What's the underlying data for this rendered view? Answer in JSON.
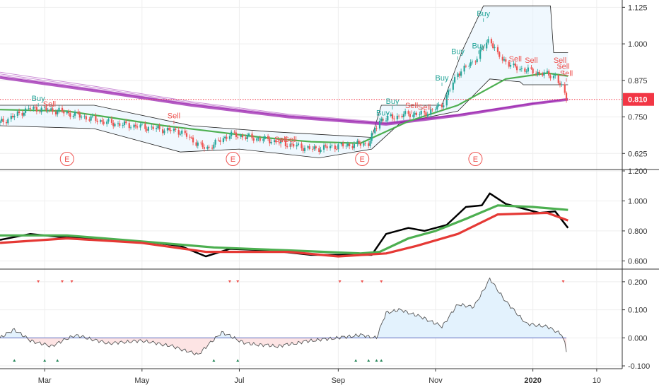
{
  "colors": {
    "up": "#26a69a",
    "down": "#ef5350",
    "buy": "#26a69a",
    "sell": "#ef5350",
    "ma_purple": "#9c27b0",
    "ma_green": "#4caf50",
    "ma_red": "#e53935",
    "channel": "#222222",
    "channel_fill": "#e3f2fd",
    "osc_pos_fill": "#e3f2fd",
    "osc_neg_fill": "#fde4e4",
    "zero_line": "#5c6bc0",
    "grid": "#eeeeee",
    "axis_text": "#333333",
    "price_tag": "#f23645"
  },
  "chart_data": [
    {
      "type": "candlestick",
      "panel": "price",
      "current_price_label": "0.810",
      "current_price": 0.81,
      "ylim": [
        0.575,
        1.15
      ],
      "y_ticks": [
        "1.125",
        "1.000",
        "0.875",
        "0.750",
        "0.625"
      ],
      "y_tick_values": [
        1.125,
        1.0,
        0.875,
        0.75,
        0.625
      ],
      "x_start": "2019-02-01",
      "x_end": "2020-02-26",
      "last_bar_date": "2020-01-23",
      "earnings_marker_label": "E",
      "earnings_dates": [
        "2019-03-15",
        "2019-06-27",
        "2019-09-16",
        "2019-11-26"
      ],
      "signals": [
        {
          "label": "Buy",
          "date": "2019-02-25",
          "value": 0.8
        },
        {
          "label": "Sell",
          "date": "2019-03-04",
          "value": 0.78
        },
        {
          "label": "Sell",
          "date": "2019-05-21",
          "value": 0.74
        },
        {
          "label": "Sell",
          "date": "2019-07-27",
          "value": 0.66
        },
        {
          "label": "Sell",
          "date": "2019-08-02",
          "value": 0.66
        },
        {
          "label": "Buy",
          "date": "2019-09-29",
          "value": 0.75
        },
        {
          "label": "Buy",
          "date": "2019-10-05",
          "value": 0.79
        },
        {
          "label": "Sell",
          "date": "2019-10-17",
          "value": 0.775
        },
        {
          "label": "Sell",
          "date": "2019-10-25",
          "value": 0.77
        },
        {
          "label": "Buy",
          "date": "2019-11-05",
          "value": 0.87
        },
        {
          "label": "Buy",
          "date": "2019-11-15",
          "value": 0.96
        },
        {
          "label": "Buy",
          "date": "2019-11-28",
          "value": 0.98
        },
        {
          "label": "Buy",
          "date": "2019-12-01",
          "value": 1.09
        },
        {
          "label": "Sell",
          "date": "2019-12-21",
          "value": 0.935
        },
        {
          "label": "Sell",
          "date": "2019-12-31",
          "value": 0.93
        },
        {
          "label": "Sell",
          "date": "2020-01-18",
          "value": 0.93
        },
        {
          "label": "Sell",
          "date": "2020-01-20",
          "value": 0.91
        },
        {
          "label": "Sell",
          "date": "2020-01-22",
          "value": 0.885
        }
      ],
      "close_path": [
        [
          "2019-02-01",
          0.73
        ],
        [
          "2019-02-20",
          0.78
        ],
        [
          "2019-03-10",
          0.77
        ],
        [
          "2019-04-10",
          0.73
        ],
        [
          "2019-05-10",
          0.71
        ],
        [
          "2019-05-25",
          0.7
        ],
        [
          "2019-06-10",
          0.64
        ],
        [
          "2019-06-25",
          0.69
        ],
        [
          "2019-07-20",
          0.67
        ],
        [
          "2019-08-15",
          0.64
        ],
        [
          "2019-09-01",
          0.65
        ],
        [
          "2019-09-20",
          0.66
        ],
        [
          "2019-09-27",
          0.74
        ],
        [
          "2019-10-15",
          0.76
        ],
        [
          "2019-10-25",
          0.76
        ],
        [
          "2019-11-05",
          0.79
        ],
        [
          "2019-11-15",
          0.9
        ],
        [
          "2019-11-25",
          0.94
        ],
        [
          "2019-12-05",
          1.02
        ],
        [
          "2019-12-10",
          0.96
        ],
        [
          "2019-12-20",
          0.92
        ],
        [
          "2020-01-05",
          0.9
        ],
        [
          "2020-01-15",
          0.89
        ],
        [
          "2020-01-23",
          0.81
        ]
      ],
      "ribbon_sma": [
        [
          "2019-02-01",
          0.885
        ],
        [
          "2019-04-01",
          0.84
        ],
        [
          "2019-06-01",
          0.79
        ],
        [
          "2019-08-01",
          0.75
        ],
        [
          "2019-10-01",
          0.725
        ],
        [
          "2019-11-15",
          0.755
        ],
        [
          "2020-01-01",
          0.795
        ],
        [
          "2020-01-23",
          0.81
        ]
      ],
      "ma_green": [
        [
          "2019-02-01",
          0.775
        ],
        [
          "2019-03-15",
          0.77
        ],
        [
          "2019-04-15",
          0.745
        ],
        [
          "2019-05-15",
          0.72
        ],
        [
          "2019-06-15",
          0.7
        ],
        [
          "2019-07-15",
          0.68
        ],
        [
          "2019-08-15",
          0.665
        ],
        [
          "2019-09-15",
          0.66
        ],
        [
          "2019-10-15",
          0.735
        ],
        [
          "2019-11-15",
          0.79
        ],
        [
          "2019-12-15",
          0.88
        ],
        [
          "2020-01-10",
          0.9
        ],
        [
          "2020-01-23",
          0.89
        ]
      ],
      "channel_upper": [
        [
          "2019-02-01",
          0.79
        ],
        [
          "2019-04-01",
          0.79
        ],
        [
          "2019-06-01",
          0.72
        ],
        [
          "2019-07-20",
          0.7
        ],
        [
          "2019-09-22",
          0.68
        ],
        [
          "2019-09-28",
          0.79
        ],
        [
          "2019-11-05",
          0.79
        ],
        [
          "2019-11-18",
          0.98
        ],
        [
          "2019-12-01",
          1.13
        ],
        [
          "2020-01-12",
          1.13
        ],
        [
          "2020-01-14",
          0.97
        ],
        [
          "2020-01-23",
          0.97
        ]
      ],
      "channel_lower": [
        [
          "2019-02-01",
          0.72
        ],
        [
          "2019-04-01",
          0.71
        ],
        [
          "2019-05-25",
          0.63
        ],
        [
          "2019-07-01",
          0.64
        ],
        [
          "2019-08-20",
          0.61
        ],
        [
          "2019-09-22",
          0.64
        ],
        [
          "2019-10-10",
          0.73
        ],
        [
          "2019-11-15",
          0.77
        ],
        [
          "2019-12-05",
          0.88
        ],
        [
          "2019-12-24",
          0.87
        ],
        [
          "2019-12-26",
          0.86
        ],
        [
          "2020-01-23",
          0.86
        ]
      ]
    },
    {
      "type": "line",
      "panel": "middle",
      "ylim": [
        0.55,
        1.2
      ],
      "y_ticks": [
        "1.200",
        "1.000",
        "0.800",
        "0.600"
      ],
      "y_tick_values": [
        1.2,
        1.0,
        0.8,
        0.6
      ],
      "series": [
        {
          "color": "#000000",
          "values": [
            [
              "2019-02-01",
              0.74
            ],
            [
              "2019-02-20",
              0.78
            ],
            [
              "2019-03-10",
              0.76
            ],
            [
              "2019-04-10",
              0.74
            ],
            [
              "2019-05-10",
              0.72
            ],
            [
              "2019-05-25",
              0.7
            ],
            [
              "2019-06-10",
              0.63
            ],
            [
              "2019-06-25",
              0.68
            ],
            [
              "2019-07-20",
              0.67
            ],
            [
              "2019-08-15",
              0.64
            ],
            [
              "2019-09-01",
              0.64
            ],
            [
              "2019-09-22",
              0.64
            ],
            [
              "2019-10-01",
              0.78
            ],
            [
              "2019-10-15",
              0.82
            ],
            [
              "2019-10-25",
              0.8
            ],
            [
              "2019-11-08",
              0.84
            ],
            [
              "2019-11-20",
              0.96
            ],
            [
              "2019-11-30",
              0.97
            ],
            [
              "2019-12-05",
              1.05
            ],
            [
              "2019-12-15",
              0.98
            ],
            [
              "2020-01-05",
              0.92
            ],
            [
              "2020-01-15",
              0.93
            ],
            [
              "2020-01-23",
              0.82
            ]
          ]
        },
        {
          "color": "#4caf50",
          "values": [
            [
              "2019-02-01",
              0.77
            ],
            [
              "2019-03-15",
              0.77
            ],
            [
              "2019-05-01",
              0.73
            ],
            [
              "2019-06-15",
              0.69
            ],
            [
              "2019-08-01",
              0.67
            ],
            [
              "2019-09-15",
              0.65
            ],
            [
              "2019-09-27",
              0.66
            ],
            [
              "2019-10-15",
              0.75
            ],
            [
              "2019-11-01",
              0.8
            ],
            [
              "2019-11-20",
              0.88
            ],
            [
              "2019-12-10",
              0.97
            ],
            [
              "2020-01-01",
              0.96
            ],
            [
              "2020-01-23",
              0.94
            ]
          ]
        },
        {
          "color": "#e53935",
          "values": [
            [
              "2019-02-01",
              0.72
            ],
            [
              "2019-03-15",
              0.75
            ],
            [
              "2019-05-01",
              0.72
            ],
            [
              "2019-06-10",
              0.66
            ],
            [
              "2019-08-01",
              0.66
            ],
            [
              "2019-09-01",
              0.63
            ],
            [
              "2019-10-01",
              0.65
            ],
            [
              "2019-10-20",
              0.7
            ],
            [
              "2019-11-15",
              0.78
            ],
            [
              "2019-12-10",
              0.91
            ],
            [
              "2020-01-10",
              0.92
            ],
            [
              "2020-01-23",
              0.87
            ]
          ]
        }
      ]
    },
    {
      "type": "area",
      "panel": "oscillator",
      "ylim": [
        -0.11,
        0.24
      ],
      "y_ticks": [
        "0.200",
        "0.100",
        "0.000",
        "-0.100"
      ],
      "y_tick_values": [
        0.2,
        0.1,
        0.0,
        -0.1
      ],
      "x_tick_labels": [
        "Mar",
        "May",
        "Jul",
        "Sep",
        "Nov",
        "2020",
        "10"
      ],
      "x_tick_dates": [
        "2019-03-01",
        "2019-05-01",
        "2019-07-01",
        "2019-09-01",
        "2019-11-01",
        "2020-01-01",
        "2020-02-10"
      ],
      "values": [
        [
          "2019-02-01",
          0.0
        ],
        [
          "2019-02-10",
          0.03
        ],
        [
          "2019-02-20",
          -0.01
        ],
        [
          "2019-03-05",
          -0.03
        ],
        [
          "2019-03-20",
          0.01
        ],
        [
          "2019-04-10",
          -0.02
        ],
        [
          "2019-05-01",
          -0.01
        ],
        [
          "2019-05-20",
          -0.03
        ],
        [
          "2019-06-05",
          -0.06
        ],
        [
          "2019-06-20",
          0.02
        ],
        [
          "2019-07-05",
          -0.02
        ],
        [
          "2019-07-25",
          -0.03
        ],
        [
          "2019-08-15",
          -0.01
        ],
        [
          "2019-09-01",
          0.0
        ],
        [
          "2019-09-15",
          0.01
        ],
        [
          "2019-09-25",
          0.0
        ],
        [
          "2019-10-01",
          0.09
        ],
        [
          "2019-10-10",
          0.1
        ],
        [
          "2019-10-25",
          0.07
        ],
        [
          "2019-11-05",
          0.04
        ],
        [
          "2019-11-15",
          0.12
        ],
        [
          "2019-11-25",
          0.11
        ],
        [
          "2019-12-05",
          0.21
        ],
        [
          "2019-12-15",
          0.13
        ],
        [
          "2019-12-28",
          0.05
        ],
        [
          "2020-01-10",
          0.04
        ],
        [
          "2020-01-20",
          0.01
        ],
        [
          "2020-01-23",
          -0.08
        ]
      ],
      "top_markers": [
        "2019-02-25",
        "2019-03-12",
        "2019-03-18",
        "2019-06-25",
        "2019-06-30",
        "2019-09-02",
        "2019-09-16",
        "2019-09-28",
        "2020-01-20"
      ],
      "bottom_markers": [
        "2019-02-10",
        "2019-03-01",
        "2019-03-09",
        "2019-06-15",
        "2019-06-30",
        "2019-09-12",
        "2019-09-20",
        "2019-09-25",
        "2019-09-28"
      ]
    }
  ]
}
